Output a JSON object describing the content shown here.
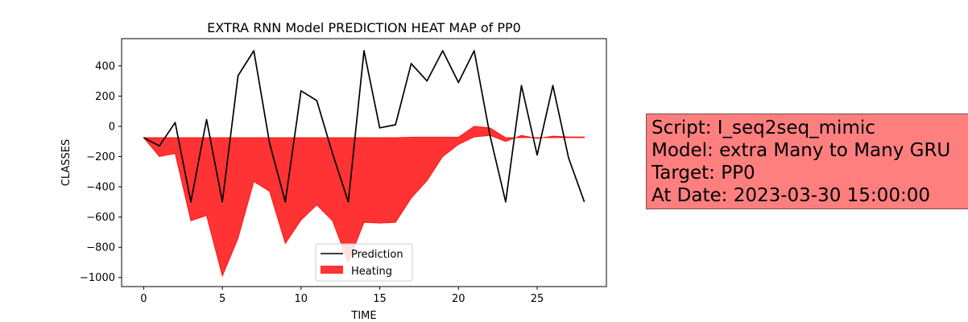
{
  "chart_data": {
    "type": "line",
    "title": "EXTRA RNN Model PREDICTION HEAT MAP of PP0",
    "xlabel": "TIME",
    "ylabel": "CLASSES",
    "xlim": [
      -1.4,
      29.4
    ],
    "ylim": [
      -1060,
      580
    ],
    "xticks": [
      0,
      5,
      10,
      15,
      20,
      25
    ],
    "yticks": [
      400,
      200,
      0,
      -200,
      -400,
      -600,
      -800,
      -1000
    ],
    "grid": false,
    "legend_position": "lower-center",
    "series": [
      {
        "name": "Prediction",
        "kind": "line",
        "color": "#000000",
        "x": [
          0,
          1,
          2,
          3,
          4,
          5,
          6,
          7,
          8,
          9,
          10,
          11,
          12,
          13,
          14,
          15,
          16,
          17,
          18,
          19,
          20,
          21,
          22,
          23,
          24,
          25,
          26,
          27,
          28
        ],
        "y": [
          -75,
          -130,
          25,
          -500,
          45,
          -500,
          335,
          500,
          -110,
          -500,
          235,
          170,
          -180,
          -500,
          500,
          -10,
          10,
          415,
          300,
          500,
          290,
          500,
          -60,
          -500,
          270,
          -190,
          270,
          -210,
          -500
        ]
      },
      {
        "name": "Heating",
        "kind": "area",
        "color": "#ff0000",
        "x": [
          0,
          1,
          2,
          3,
          4,
          5,
          6,
          7,
          8,
          9,
          10,
          11,
          12,
          13,
          14,
          15,
          16,
          17,
          18,
          19,
          20,
          21,
          22,
          23,
          24,
          25,
          26,
          27,
          28
        ],
        "y_upper": [
          -75,
          -75,
          -75,
          -75,
          -75,
          -75,
          -75,
          -75,
          -75,
          -75,
          -75,
          -75,
          -75,
          -75,
          -75,
          -75,
          -75,
          -72,
          -72,
          -72,
          -72,
          0,
          -10,
          -75,
          -75,
          -75,
          -75,
          -75,
          -75
        ],
        "y_lower": [
          -75,
          -200,
          -180,
          -625,
          -590,
          -990,
          -740,
          -365,
          -430,
          -775,
          -620,
          -520,
          -625,
          -900,
          -635,
          -640,
          -635,
          -475,
          -360,
          -200,
          -120,
          -70,
          -60,
          -100,
          -60,
          -80,
          -65,
          -70,
          -70
        ]
      }
    ]
  },
  "info_box": {
    "color": "#ff7f7f",
    "lines": [
      "Script: I_seq2seq_mimic",
      "Model: extra Many to Many GRU",
      "Target: PP0",
      "At Date: 2023-03-30 15:00:00"
    ]
  }
}
